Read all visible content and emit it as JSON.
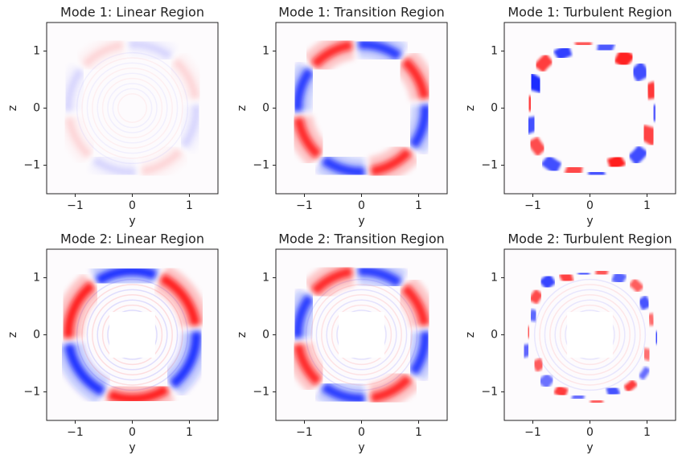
{
  "chart_data": [
    {
      "type": "heatmap",
      "title": "Mode 1: Linear Region",
      "xlabel": "y",
      "ylabel": "z",
      "xlim": [
        -1.5,
        1.5
      ],
      "ylim": [
        -1.5,
        1.5
      ],
      "xticks": [
        {
          "value": -1,
          "label": "−1"
        },
        0,
        1
      ],
      "yticks": [
        {
          "value": -1,
          "label": "−1"
        },
        0,
        1
      ]
    },
    {
      "type": "heatmap",
      "title": "Mode 1: Transition Region",
      "xlabel": "y",
      "ylabel": "z",
      "xlim": [
        -1.5,
        1.5
      ],
      "ylim": [
        -1.5,
        1.5
      ],
      "xticks": [
        {
          "value": -1,
          "label": "−1"
        },
        0,
        1
      ],
      "yticks": [
        {
          "value": -1,
          "label": "−1"
        },
        0,
        1
      ]
    },
    {
      "type": "heatmap",
      "title": "Mode 1: Turbulent Region",
      "xlabel": "y",
      "ylabel": "z",
      "xlim": [
        -1.5,
        1.5
      ],
      "ylim": [
        -1.5,
        1.5
      ],
      "xticks": [
        {
          "value": -1,
          "label": "−1"
        },
        0,
        1
      ],
      "yticks": [
        {
          "value": -1,
          "label": "−1"
        },
        0,
        1
      ]
    },
    {
      "type": "heatmap",
      "title": "Mode 2: Linear Region",
      "xlabel": "y",
      "ylabel": "z",
      "xlim": [
        -1.5,
        1.5
      ],
      "ylim": [
        -1.5,
        1.5
      ],
      "xticks": [
        {
          "value": -1,
          "label": "−1"
        },
        0,
        1
      ],
      "yticks": [
        {
          "value": -1,
          "label": "−1"
        },
        0,
        1
      ]
    },
    {
      "type": "heatmap",
      "title": "Mode 2: Transition Region",
      "xlabel": "y",
      "ylabel": "z",
      "xlim": [
        -1.5,
        1.5
      ],
      "ylim": [
        -1.5,
        1.5
      ],
      "xticks": [
        {
          "value": -1,
          "label": "−1"
        },
        0,
        1
      ],
      "yticks": [
        {
          "value": -1,
          "label": "−1"
        },
        0,
        1
      ]
    },
    {
      "type": "heatmap",
      "title": "Mode 2: Turbulent Region",
      "xlabel": "y",
      "ylabel": "z",
      "xlim": [
        -1.5,
        1.5
      ],
      "ylim": [
        -1.5,
        1.5
      ],
      "xticks": [
        {
          "value": -1,
          "label": "−1"
        },
        0,
        1
      ],
      "yticks": [
        {
          "value": -1,
          "label": "−1"
        },
        0,
        1
      ]
    }
  ]
}
